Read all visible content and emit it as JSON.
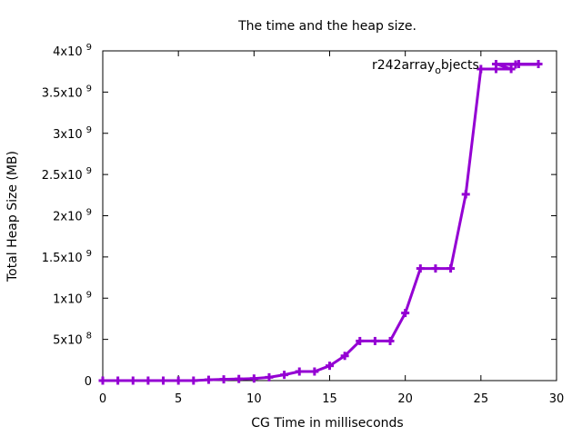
{
  "chart_data": {
    "type": "line",
    "title": "The time and the heap size.",
    "xlabel": "CG Time in milliseconds",
    "ylabel": "Total Heap Size (MB)",
    "xlim": [
      0,
      30
    ],
    "ylim": [
      0,
      4000000000
    ],
    "x_ticks": [
      {
        "value": 0,
        "label": "0"
      },
      {
        "value": 5,
        "label": "5"
      },
      {
        "value": 10,
        "label": "10"
      },
      {
        "value": 15,
        "label": "15"
      },
      {
        "value": 20,
        "label": "20"
      },
      {
        "value": 25,
        "label": "25"
      },
      {
        "value": 30,
        "label": "30"
      }
    ],
    "y_ticks": [
      {
        "value": 0,
        "label": "0",
        "exp": ""
      },
      {
        "value": 500000000,
        "label": "5x10",
        "exp": "8"
      },
      {
        "value": 1000000000,
        "label": "1x10",
        "exp": "9"
      },
      {
        "value": 1500000000,
        "label": "1.5x10",
        "exp": "9"
      },
      {
        "value": 2000000000,
        "label": "2x10",
        "exp": "9"
      },
      {
        "value": 2500000000,
        "label": "2.5x10",
        "exp": "9"
      },
      {
        "value": 3000000000,
        "label": "3x10",
        "exp": "9"
      },
      {
        "value": 3500000000,
        "label": "3.5x10",
        "exp": "9"
      },
      {
        "value": 4000000000,
        "label": "4x10",
        "exp": "9"
      }
    ],
    "grid": false,
    "legend_position": "top-right",
    "legend": {
      "text": "r242array",
      "subscript": "o",
      "suffix": "bjects"
    },
    "series": [
      {
        "name": "r242array_objects",
        "color": "#9400d3",
        "marker": "plus",
        "points": [
          [
            0,
            0
          ],
          [
            1,
            0
          ],
          [
            2,
            0
          ],
          [
            3,
            0
          ],
          [
            4,
            0
          ],
          [
            5,
            0
          ],
          [
            6,
            0
          ],
          [
            7,
            10000000
          ],
          [
            8,
            15000000
          ],
          [
            9,
            20000000
          ],
          [
            10,
            25000000
          ],
          [
            11,
            40000000
          ],
          [
            12,
            70000000
          ],
          [
            13,
            110000000
          ],
          [
            14,
            110000000
          ],
          [
            15,
            180000000
          ],
          [
            16,
            300000000
          ],
          [
            17,
            480000000
          ],
          [
            18,
            480000000
          ],
          [
            19,
            480000000
          ],
          [
            20,
            820000000
          ],
          [
            21,
            1360000000
          ],
          [
            22,
            1360000000
          ],
          [
            23,
            1360000000
          ],
          [
            24,
            2260000000
          ],
          [
            25,
            3780000000
          ],
          [
            26,
            3780000000
          ],
          [
            27,
            3780000000
          ],
          [
            26,
            3840000000
          ],
          [
            27.5,
            3840000000
          ],
          [
            28.8,
            3840000000
          ]
        ]
      }
    ]
  }
}
